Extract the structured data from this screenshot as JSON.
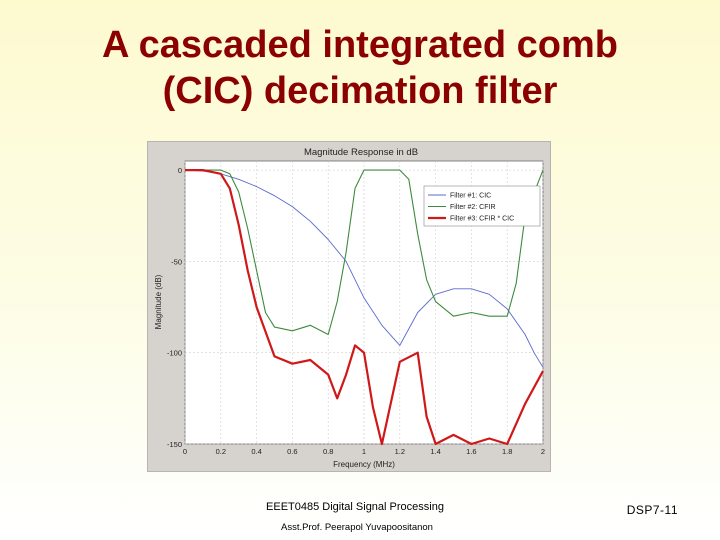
{
  "slide": {
    "title_line1": "A cascaded integrated comb",
    "title_line2": "(CIC) decimation filter",
    "course": "EEET0485 Digital Signal Processing",
    "author": "Asst.Prof. Peerapol Yuvapoositanon",
    "slide_number": "DSP7-11"
  },
  "colors": {
    "title": "#8b0000",
    "cic": "#5a6ad0",
    "cfir": "#3e8a3e",
    "product": "#d01818",
    "plot_bg": "#ffffff",
    "frame_bg": "#d6d3ce"
  },
  "chart_data": {
    "type": "line",
    "title": "Magnitude Response in dB",
    "xlabel": "Frequency (MHz)",
    "ylabel": "Magnitude (dB)",
    "xlim": [
      0,
      2
    ],
    "ylim": [
      -150,
      5
    ],
    "x_ticks": [
      "0",
      "0.2",
      "0.4",
      "0.6",
      "0.8",
      "1",
      "1.2",
      "1.4",
      "1.6",
      "1.8",
      "2"
    ],
    "y_ticks": [
      "0",
      "-50",
      "-100",
      "-150"
    ],
    "grid": true,
    "legend_position": "top-right",
    "series": [
      {
        "name": "Filter #1: CIC",
        "color_key": "cic",
        "x": [
          0,
          0.1,
          0.2,
          0.3,
          0.4,
          0.5,
          0.6,
          0.7,
          0.8,
          0.9,
          1.0,
          1.1,
          1.2,
          1.3,
          1.4,
          1.5,
          1.6,
          1.7,
          1.8,
          1.9,
          1.95,
          2.0
        ],
        "y": [
          0,
          -0.5,
          -2,
          -5,
          -9,
          -14,
          -20,
          -28,
          -38,
          -50,
          -70,
          -85,
          -96,
          -78,
          -68,
          -65,
          -65,
          -68,
          -76,
          -90,
          -100,
          -108
        ]
      },
      {
        "name": "Filter #2: CFIR",
        "color_key": "cfir",
        "x": [
          0,
          0.1,
          0.2,
          0.25,
          0.3,
          0.35,
          0.4,
          0.45,
          0.5,
          0.6,
          0.7,
          0.8,
          0.85,
          0.9,
          0.95,
          1.0,
          1.1,
          1.15,
          1.2,
          1.25,
          1.3,
          1.35,
          1.4,
          1.5,
          1.6,
          1.7,
          1.8,
          1.85,
          1.9,
          2.0
        ],
        "y": [
          0,
          0,
          0,
          -2,
          -12,
          -32,
          -55,
          -78,
          -86,
          -88,
          -85,
          -90,
          -72,
          -45,
          -10,
          0,
          0,
          0,
          0,
          -5,
          -35,
          -60,
          -72,
          -80,
          -78,
          -80,
          -80,
          -62,
          -25,
          0
        ]
      },
      {
        "name": "Filter #3: CFIR * CIC",
        "color_key": "product",
        "x": [
          0,
          0.1,
          0.2,
          0.25,
          0.3,
          0.35,
          0.4,
          0.5,
          0.6,
          0.7,
          0.8,
          0.85,
          0.9,
          0.95,
          1.0,
          1.05,
          1.1,
          1.2,
          1.3,
          1.35,
          1.4,
          1.5,
          1.6,
          1.7,
          1.8,
          1.9,
          2.0
        ],
        "y": [
          0,
          0,
          -2,
          -10,
          -30,
          -55,
          -75,
          -102,
          -106,
          -104,
          -112,
          -125,
          -112,
          -96,
          -100,
          -130,
          -150,
          -105,
          -100,
          -135,
          -150,
          -145,
          -150,
          -147,
          -150,
          -128,
          -110
        ]
      }
    ]
  }
}
